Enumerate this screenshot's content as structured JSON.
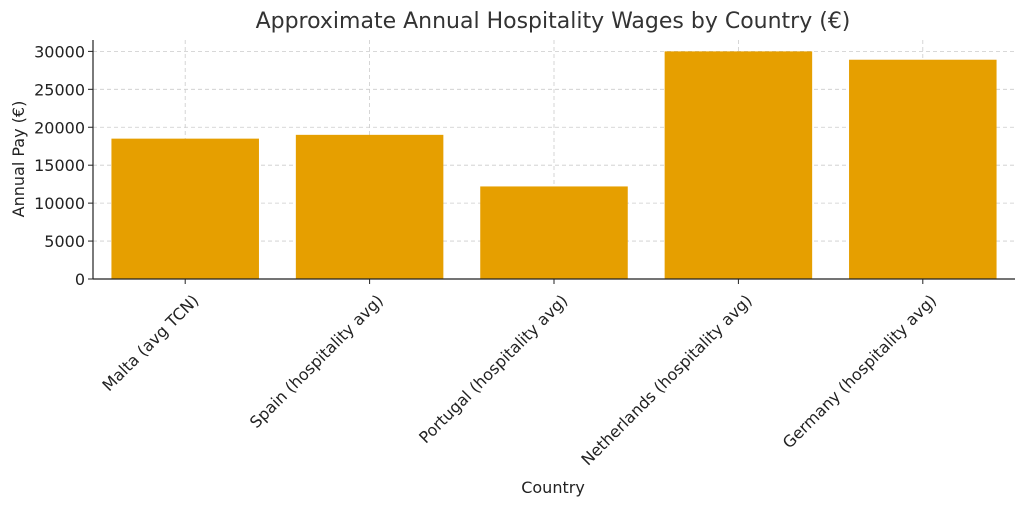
{
  "chart_data": {
    "type": "bar",
    "title": "Approximate Annual Hospitality Wages by Country (€)",
    "xlabel": "Country",
    "ylabel": "Annual Pay (€)",
    "categories": [
      "Malta (avg TCN)",
      "Spain (hospitality avg)",
      "Portugal (hospitality avg)",
      "Netherlands (hospitality avg)",
      "Germany (hospitality avg)"
    ],
    "values": [
      18500,
      19000,
      12200,
      30000,
      28900
    ],
    "ylim": [
      0,
      31500
    ],
    "yticks": [
      0,
      5000,
      10000,
      15000,
      20000,
      25000,
      30000
    ],
    "grid": true,
    "bar_color": "#E69F00"
  }
}
